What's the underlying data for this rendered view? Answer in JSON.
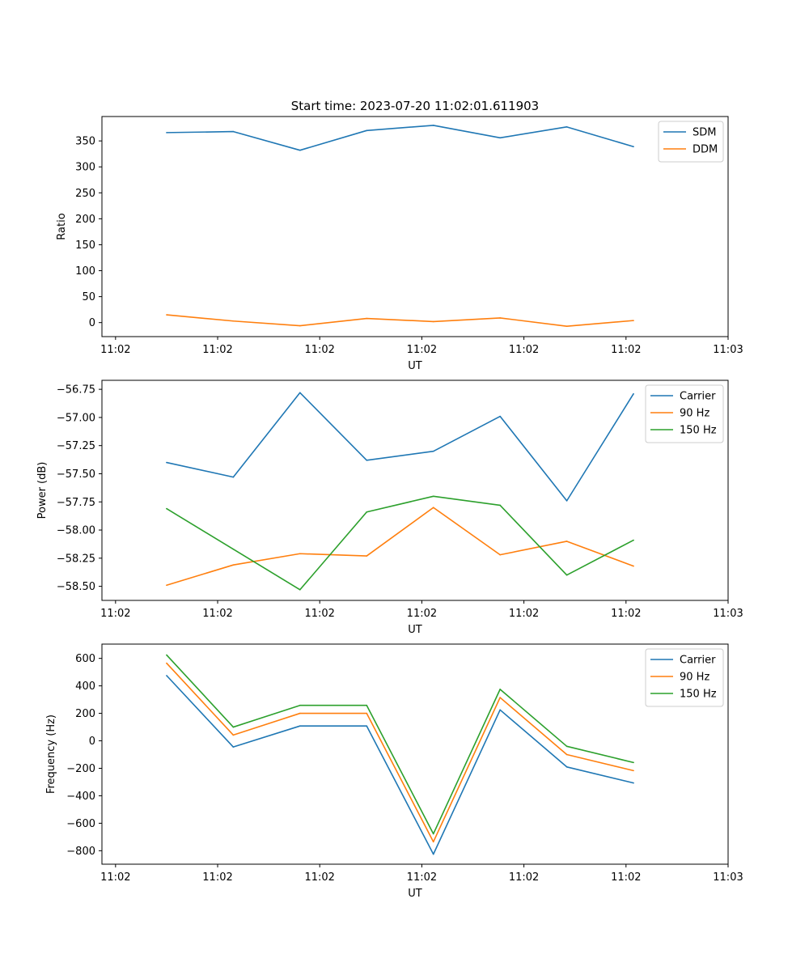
{
  "figure_title": "Start time: 2023-07-20 11:02:01.611903",
  "colors": {
    "c0": "#1f77b4",
    "c1": "#ff7f0e",
    "c2": "#2ca02c"
  },
  "chart_data": [
    {
      "type": "line",
      "title": "Start time: 2023-07-20 11:02:01.611903",
      "xlabel": "UT",
      "ylabel": "Ratio",
      "xlim": [
        -0.2,
        9.0
      ],
      "ylim": [
        -27,
        397
      ],
      "x_ticks": [
        0,
        1.5,
        3,
        4.5,
        6,
        7.5,
        9
      ],
      "x_tick_labels": [
        "11:02",
        "11:02",
        "11:02",
        "11:02",
        "11:02",
        "11:02",
        "11:03"
      ],
      "y_ticks": [
        0,
        50,
        100,
        150,
        200,
        250,
        300,
        350
      ],
      "y_tick_labels": [
        "0",
        "50",
        "100",
        "150",
        "200",
        "250",
        "300",
        "350"
      ],
      "x": [
        0.75,
        1.73,
        2.71,
        3.69,
        4.67,
        5.65,
        6.63,
        7.61
      ],
      "legend_position": "top-right",
      "series": [
        {
          "name": "SDM",
          "color": "#1f77b4",
          "values": [
            366,
            368,
            332,
            370,
            380,
            356,
            377,
            339
          ]
        },
        {
          "name": "DDM",
          "color": "#ff7f0e",
          "values": [
            15,
            3,
            -6,
            8,
            2,
            9,
            -7,
            4
          ]
        }
      ]
    },
    {
      "type": "line",
      "title": "",
      "xlabel": "UT",
      "ylabel": "Power (dB)",
      "xlim": [
        -0.2,
        9.0
      ],
      "ylim": [
        -58.625,
        -56.67
      ],
      "x_ticks": [
        0,
        1.5,
        3,
        4.5,
        6,
        7.5,
        9
      ],
      "x_tick_labels": [
        "11:02",
        "11:02",
        "11:02",
        "11:02",
        "11:02",
        "11:02",
        "11:03"
      ],
      "y_ticks": [
        -58.5,
        -58.25,
        -58.0,
        -57.75,
        -57.5,
        -57.25,
        -57.0,
        -56.75
      ],
      "y_tick_labels": [
        "−58.50",
        "−58.25",
        "−58.00",
        "−57.75",
        "−57.50",
        "−57.25",
        "−57.00",
        "−56.75"
      ],
      "x": [
        0.75,
        1.73,
        2.71,
        3.69,
        4.67,
        5.65,
        6.63,
        7.61
      ],
      "legend_position": "top-right",
      "series": [
        {
          "name": "Carrier",
          "color": "#1f77b4",
          "values": [
            -57.4,
            -57.53,
            -56.78,
            -57.38,
            -57.3,
            -56.99,
            -57.74,
            -56.79
          ]
        },
        {
          "name": "90 Hz",
          "color": "#ff7f0e",
          "values": [
            -58.49,
            -58.31,
            -58.21,
            -58.23,
            -57.8,
            -58.22,
            -58.1,
            -58.32
          ]
        },
        {
          "name": "150 Hz",
          "color": "#2ca02c",
          "values": [
            -57.81,
            -58.17,
            -58.53,
            -57.84,
            -57.7,
            -57.78,
            -58.4,
            -58.09
          ]
        }
      ]
    },
    {
      "type": "line",
      "title": "",
      "xlabel": "UT",
      "ylabel": "Frequency (Hz)",
      "xlim": [
        -0.2,
        9.0
      ],
      "ylim": [
        -898,
        704
      ],
      "x_ticks": [
        0,
        1.5,
        3,
        4.5,
        6,
        7.5,
        9
      ],
      "x_tick_labels": [
        "11:02",
        "11:02",
        "11:02",
        "11:02",
        "11:02",
        "11:02",
        "11:03"
      ],
      "y_ticks": [
        -800,
        -600,
        -400,
        -200,
        0,
        200,
        400,
        600
      ],
      "y_tick_labels": [
        "−800",
        "−600",
        "−400",
        "−200",
        "0",
        "200",
        "400",
        "600"
      ],
      "x": [
        0.75,
        1.73,
        2.71,
        3.69,
        4.67,
        5.65,
        6.63,
        7.61
      ],
      "legend_position": "top-right",
      "series": [
        {
          "name": "Carrier",
          "color": "#1f77b4",
          "values": [
            475,
            -45,
            108,
            108,
            -825,
            225,
            -190,
            -307
          ]
        },
        {
          "name": "90 Hz",
          "color": "#ff7f0e",
          "values": [
            565,
            42,
            200,
            200,
            -735,
            315,
            -100,
            -217
          ]
        },
        {
          "name": "150 Hz",
          "color": "#2ca02c",
          "values": [
            625,
            100,
            258,
            258,
            -677,
            375,
            -40,
            -158
          ]
        }
      ]
    }
  ]
}
